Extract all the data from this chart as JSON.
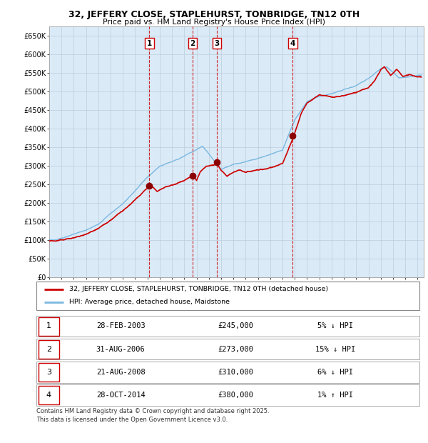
{
  "title": "32, JEFFERY CLOSE, STAPLEHURST, TONBRIDGE, TN12 0TH",
  "subtitle": "Price paid vs. HM Land Registry's House Price Index (HPI)",
  "ylim": [
    0,
    675000
  ],
  "yticks": [
    0,
    50000,
    100000,
    150000,
    200000,
    250000,
    300000,
    350000,
    400000,
    450000,
    500000,
    550000,
    600000,
    650000
  ],
  "ytick_labels": [
    "£0",
    "£50K",
    "£100K",
    "£150K",
    "£200K",
    "£250K",
    "£300K",
    "£350K",
    "£400K",
    "£450K",
    "£500K",
    "£550K",
    "£600K",
    "£650K"
  ],
  "hpi_color": "#7ab8e0",
  "price_color": "#cc0000",
  "marker_color": "#8b0000",
  "vline_color": "#cc0000",
  "bg_color": "#dbeaf7",
  "grid_color": "#bbccdd",
  "purchase_dates": [
    2003.15,
    2006.67,
    2008.65,
    2014.83
  ],
  "purchase_prices": [
    245000,
    273000,
    310000,
    380000
  ],
  "purchase_labels": [
    "1",
    "2",
    "3",
    "4"
  ],
  "legend_line1": "32, JEFFERY CLOSE, STAPLEHURST, TONBRIDGE, TN12 0TH (detached house)",
  "legend_line2": "HPI: Average price, detached house, Maidstone",
  "table_data": [
    [
      "1",
      "28-FEB-2003",
      "£245,000",
      "5% ↓ HPI"
    ],
    [
      "2",
      "31-AUG-2006",
      "£273,000",
      "15% ↓ HPI"
    ],
    [
      "3",
      "21-AUG-2008",
      "£310,000",
      "6% ↓ HPI"
    ],
    [
      "4",
      "28-OCT-2014",
      "£380,000",
      "1% ↑ HPI"
    ]
  ],
  "footnote": "Contains HM Land Registry data © Crown copyright and database right 2025.\nThis data is licensed under the Open Government Licence v3.0."
}
